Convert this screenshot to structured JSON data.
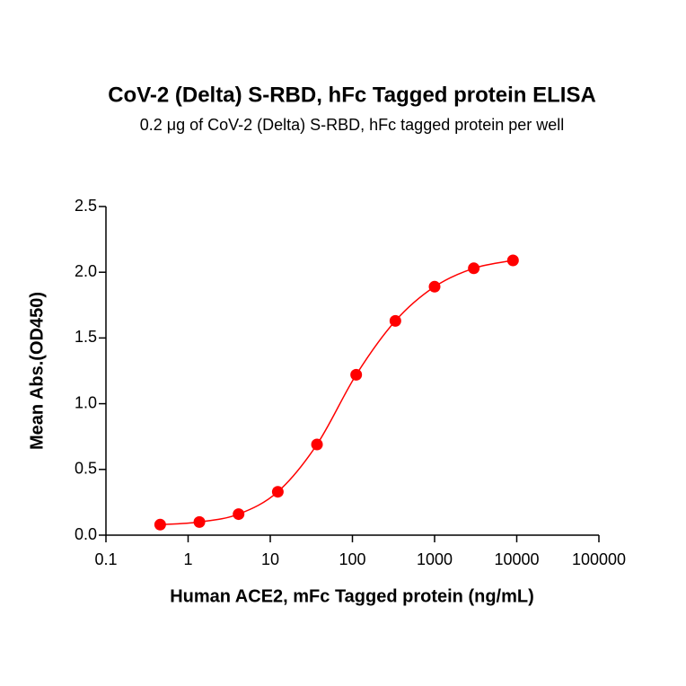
{
  "chart_data": {
    "type": "scatter",
    "title": "CoV-2 (Delta) S-RBD, hFc Tagged protein ELISA",
    "subtitle": "0.2 μg of CoV-2 (Delta) S-RBD, hFc tagged protein per well",
    "x_label": "Human ACE2, mFc Tagged protein (ng/mL)",
    "y_label": "Mean Abs.(OD450)",
    "x_scale": "log",
    "series": [
      {
        "color": "#ff0000",
        "x": [
          0.457,
          1.372,
          4.115,
          12.35,
          37.04,
          111.1,
          333.3,
          1000,
          3000,
          9000
        ],
        "values": [
          0.08,
          0.1,
          0.16,
          0.33,
          0.69,
          1.22,
          1.63,
          1.89,
          2.03,
          2.09
        ]
      }
    ],
    "xlim": [
      0.1,
      100000
    ],
    "xticks": [
      0.1,
      1,
      10,
      100,
      1000,
      10000,
      100000
    ],
    "ylim": [
      0,
      2.5
    ],
    "yticks": [
      {
        "value": 0,
        "label": "0.0"
      },
      0.5,
      {
        "value": 1,
        "label": "1.0"
      },
      1.5,
      {
        "value": 2,
        "label": "2.0"
      },
      2.5
    ]
  }
}
